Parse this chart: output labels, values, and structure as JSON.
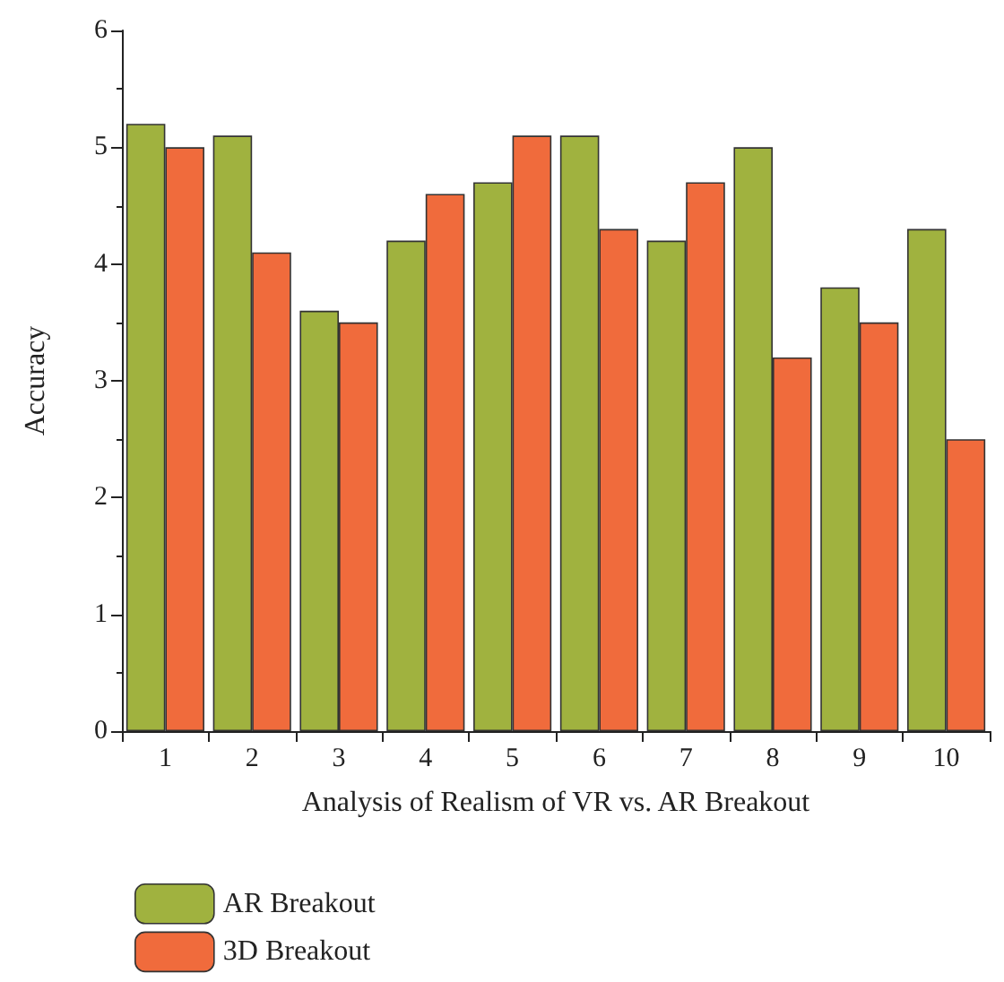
{
  "chart_data": {
    "type": "bar",
    "xlabel": "Analysis of Realism of VR vs. AR Breakout",
    "ylabel": "Accuracy",
    "categories": [
      "1",
      "2",
      "3",
      "4",
      "5",
      "6",
      "7",
      "8",
      "9",
      "10"
    ],
    "series": [
      {
        "name": "AR Breakout",
        "color": "#a0b23f",
        "values": [
          5.2,
          5.1,
          3.6,
          4.2,
          4.7,
          5.1,
          4.2,
          5.0,
          3.8,
          4.3
        ]
      },
      {
        "name": "3D Breakout",
        "color": "#f06b3c",
        "values": [
          5.0,
          4.1,
          3.5,
          4.6,
          5.1,
          4.3,
          4.7,
          3.2,
          3.5,
          2.5
        ]
      }
    ],
    "ylim": [
      0,
      6
    ],
    "yticks": [
      0,
      1,
      2,
      3,
      4,
      5,
      6
    ],
    "grid": false,
    "legend": "bottom left"
  }
}
